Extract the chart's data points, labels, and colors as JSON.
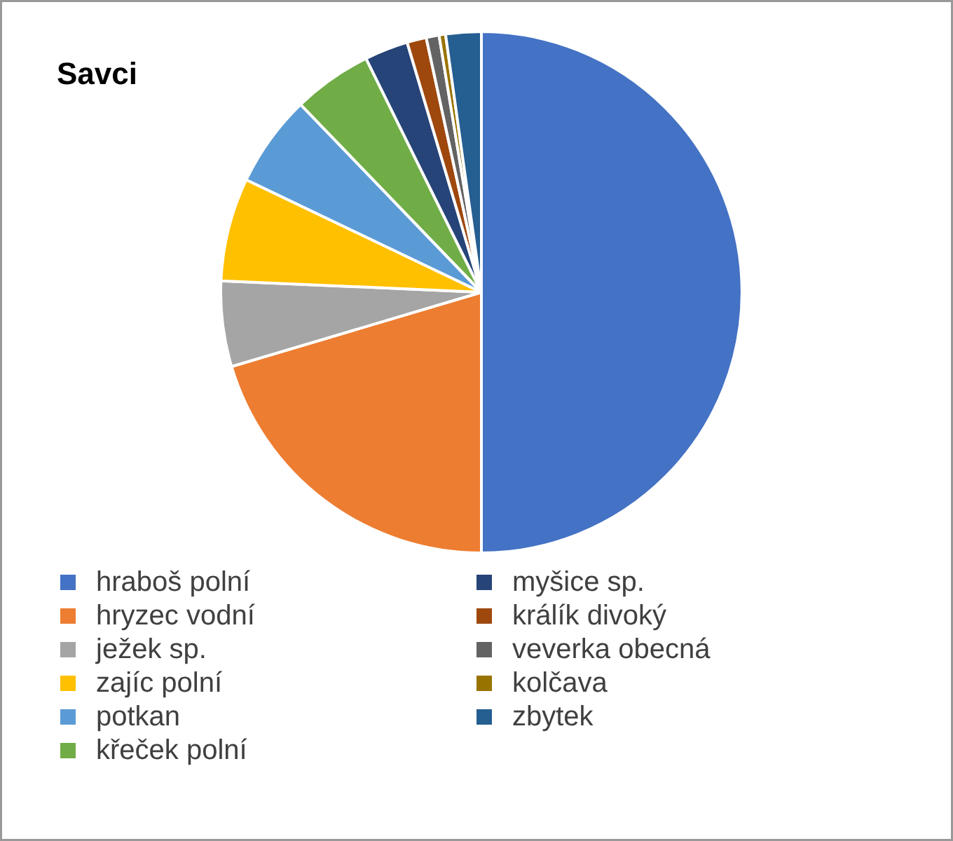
{
  "chart_data": {
    "type": "pie",
    "title": "Savci",
    "categories": [
      "hraboš polní",
      "hryzec vodní",
      "ježek sp.",
      "zajíc polní",
      "potkan",
      "křeček polní",
      "myšice sp.",
      "králík divoký",
      "veverka obecná",
      "kolčava",
      "zbytek"
    ],
    "values": [
      50,
      20.4,
      5.3,
      6.4,
      5.7,
      4.9,
      2.7,
      1.2,
      0.8,
      0.4,
      2.2
    ],
    "colors": [
      "#4472c4",
      "#ed7d31",
      "#a5a5a5",
      "#ffc000",
      "#5b9bd5",
      "#70ad47",
      "#264478",
      "#9e480e",
      "#636363",
      "#997300",
      "#255e91"
    ],
    "legend": "bottom"
  }
}
